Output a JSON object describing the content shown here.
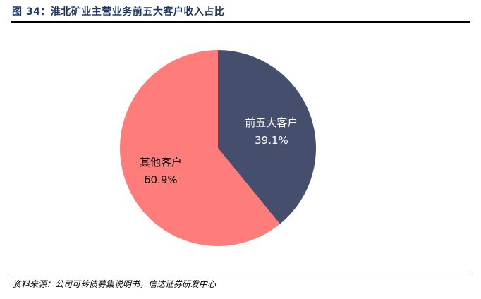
{
  "figure": {
    "title": "图 34：淮北矿业主营业务前五大客户收入占比",
    "source": "资料来源：公司可转债募集说明书，信达证券研发中心"
  },
  "chart_data": {
    "type": "pie",
    "title": "",
    "slices": [
      {
        "label": "前五大客户",
        "value": 39.1,
        "value_label": "39.1%",
        "color": "#454e6c",
        "text_color": "#ffffff"
      },
      {
        "label": "其他客户",
        "value": 60.9,
        "value_label": "60.9%",
        "color": "#fe7c7a",
        "text_color": "#000000"
      }
    ],
    "start_angle": "12 o'clock",
    "direction": "clockwise",
    "legend": "none"
  }
}
